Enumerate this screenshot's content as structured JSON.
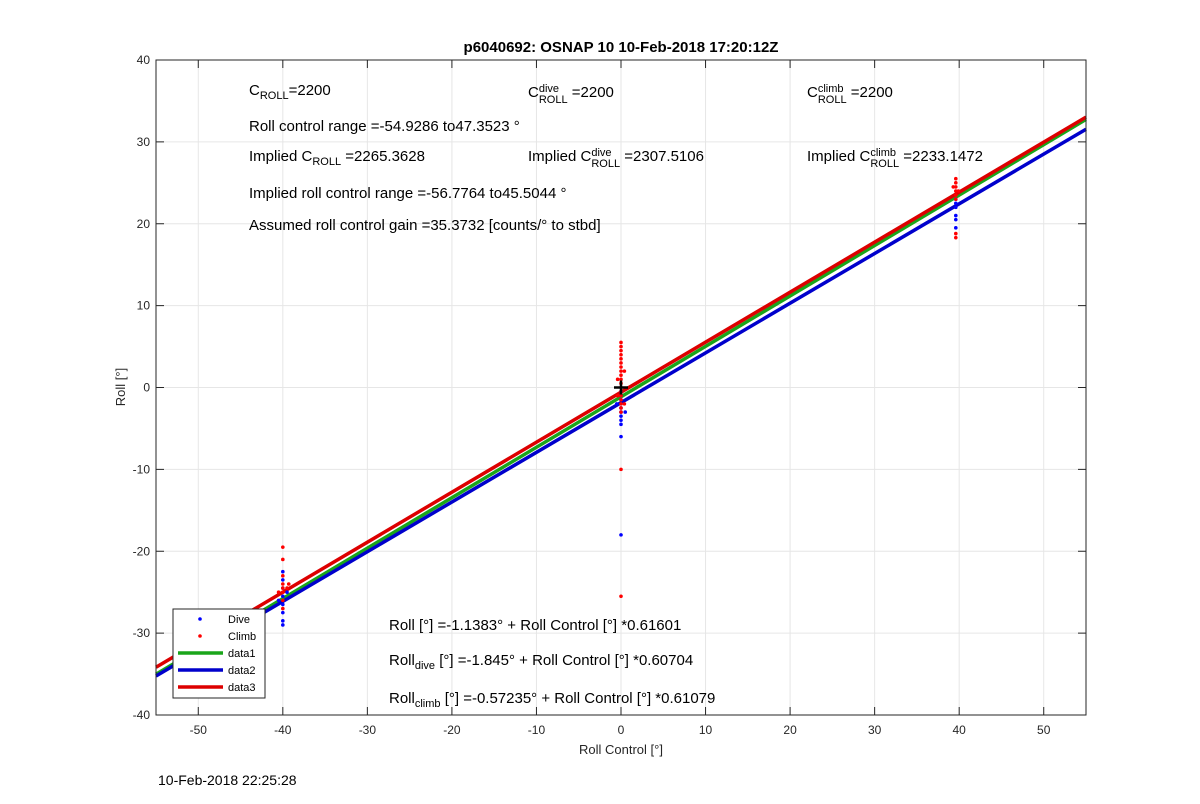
{
  "chart_data": {
    "type": "scatter",
    "title": "p6040692: OSNAP 10 10-Feb-2018 17:20:12Z",
    "xlabel": "Roll Control [°]",
    "ylabel": "Roll [°]",
    "xlim": [
      -55,
      55
    ],
    "ylim": [
      -40,
      40
    ],
    "xticks": [
      -50,
      -40,
      -30,
      -20,
      -10,
      0,
      10,
      20,
      30,
      40,
      50
    ],
    "yticks": [
      -40,
      -30,
      -20,
      -10,
      0,
      10,
      20,
      30,
      40
    ],
    "grid": true,
    "legend_position": "bottom-left",
    "series": [
      {
        "name": "Dive",
        "kind": "points",
        "color": "#0000ff",
        "points": [
          [
            -40,
            -22.5
          ],
          [
            -40,
            -23.5
          ],
          [
            -40,
            -24.5
          ],
          [
            -40,
            -25.5
          ],
          [
            -40,
            -26.5
          ],
          [
            -40,
            -27.5
          ],
          [
            -40,
            -28.5
          ],
          [
            -40,
            -29.0
          ],
          [
            -39.5,
            -25.0
          ],
          [
            -40.5,
            -26.0
          ],
          [
            0,
            -0.5
          ],
          [
            0,
            -1.0
          ],
          [
            0,
            -1.5
          ],
          [
            0,
            -2.0
          ],
          [
            0,
            -2.5
          ],
          [
            0,
            -3.0
          ],
          [
            0,
            -3.5
          ],
          [
            0,
            -4.0
          ],
          [
            0,
            -4.5
          ],
          [
            -0.5,
            -2.0
          ],
          [
            0.5,
            -3.0
          ],
          [
            0,
            -6.0
          ],
          [
            0,
            -18.0
          ],
          [
            39.6,
            19.5
          ],
          [
            39.6,
            20.5
          ],
          [
            39.6,
            21.0
          ],
          [
            39.6,
            22.0
          ],
          [
            39.6,
            22.5
          ],
          [
            39.6,
            23.0
          ]
        ]
      },
      {
        "name": "Climb",
        "kind": "points",
        "color": "#ff0000",
        "points": [
          [
            -40,
            -19.5
          ],
          [
            -40,
            -21.0
          ],
          [
            -40,
            -23.0
          ],
          [
            -40,
            -24.0
          ],
          [
            -40,
            -24.5
          ],
          [
            -40,
            -25.0
          ],
          [
            -40,
            -26.0
          ],
          [
            -40,
            -27.0
          ],
          [
            -39.5,
            -24.5
          ],
          [
            -40.5,
            -25.0
          ],
          [
            -39.3,
            -24.0
          ],
          [
            0,
            5.5
          ],
          [
            0,
            5.0
          ],
          [
            0,
            4.5
          ],
          [
            0,
            4.0
          ],
          [
            0,
            3.5
          ],
          [
            0,
            3.0
          ],
          [
            0,
            2.5
          ],
          [
            0,
            2.0
          ],
          [
            0,
            1.5
          ],
          [
            0,
            1.0
          ],
          [
            0,
            0.5
          ],
          [
            0,
            -0.5
          ],
          [
            0,
            -1.0
          ],
          [
            0,
            -1.5
          ],
          [
            0,
            -2.0
          ],
          [
            0,
            -2.5
          ],
          [
            0,
            -3.0
          ],
          [
            -0.4,
            1.0
          ],
          [
            0.4,
            2.0
          ],
          [
            -0.4,
            -1.0
          ],
          [
            0.4,
            -2.0
          ],
          [
            0,
            -10.0
          ],
          [
            0,
            -25.5
          ],
          [
            39.6,
            25.5
          ],
          [
            39.6,
            25.0
          ],
          [
            39.6,
            24.5
          ],
          [
            39.6,
            24.0
          ],
          [
            39.6,
            23.5
          ],
          [
            39.6,
            23.0
          ],
          [
            39.6,
            18.8
          ],
          [
            39.6,
            18.3
          ],
          [
            39.3,
            24.5
          ],
          [
            39.9,
            24.0
          ]
        ]
      },
      {
        "name": "data1",
        "kind": "line",
        "color": "#1aa51a",
        "intercept": -1.1383,
        "slope": 0.61601
      },
      {
        "name": "data2",
        "kind": "line",
        "color": "#0000cc",
        "intercept": -1.845,
        "slope": 0.60704
      },
      {
        "name": "data3",
        "kind": "line",
        "color": "#dd0000",
        "intercept": -0.57235,
        "slope": 0.61079
      }
    ],
    "marker_plus": [
      0,
      0
    ]
  },
  "annotations": {
    "c_roll_base": "C",
    "c_roll_sub": "ROLL",
    "c_roll_value": "=2200",
    "c_dive_sup": "dive",
    "c_dive_value": "=2200",
    "c_climb_sup": "climb",
    "c_climb_value": "=2200",
    "roll_control_range": "Roll control range =-54.9286 to47.3523 °",
    "implied_prefix": "Implied C",
    "implied_roll_value": "=2265.3628",
    "implied_dive_value": "=2307.5106",
    "implied_climb_value": "=2233.1472",
    "implied_range": "Implied roll control range =-56.7764 to45.5044 °",
    "assumed_gain": "Assumed roll control gain =35.3732 [counts/° to stbd]",
    "eq_all": "Roll [°] =-1.1383° + Roll Control [°] *0.61601",
    "eq_dive_base": "Roll",
    "eq_dive_sub": "dive",
    "eq_dive_rest": "[°] =-1.845° + Roll Control [°] *0.60704",
    "eq_climb_base": "Roll",
    "eq_climb_sub": "climb",
    "eq_climb_rest": "[°] =-0.57235° + Roll Control [°] *0.61079"
  },
  "footer_timestamp": "10-Feb-2018 22:25:28"
}
